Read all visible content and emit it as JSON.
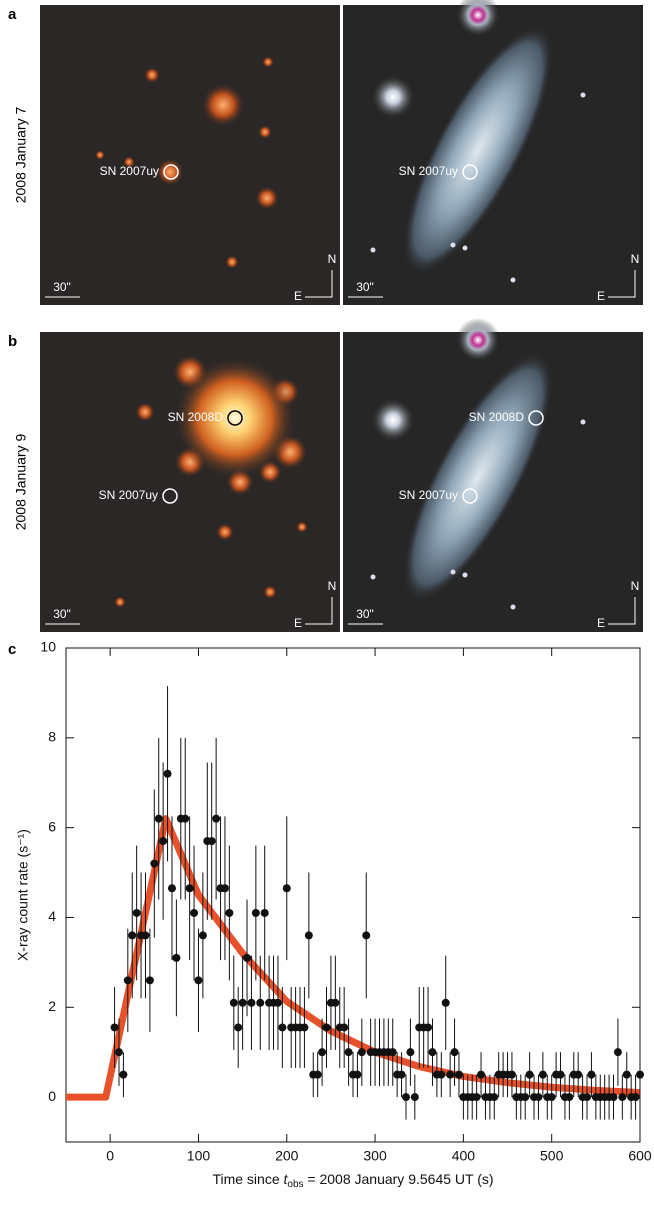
{
  "image_panels": [
    {
      "label": "a",
      "date": "2008 January 7",
      "images": [
        {
          "annotations": [
            "SN 2007uy"
          ],
          "scale": "30\"",
          "north": "N",
          "east": "E"
        },
        {
          "annotations": [
            "SN 2007uy"
          ],
          "scale": "30\"",
          "north": "N",
          "east": "E"
        }
      ]
    },
    {
      "label": "b",
      "date": "2008 January 9",
      "images": [
        {
          "annotations": [
            "SN 2008D",
            "SN 2007uy"
          ],
          "scale": "30\"",
          "north": "N",
          "east": "E"
        },
        {
          "annotations": [
            "SN 2008D",
            "SN 2007uy"
          ],
          "scale": "30\"",
          "north": "N",
          "east": "E"
        }
      ]
    }
  ],
  "chart_data": {
    "type": "scatter",
    "label": "c",
    "xlabel": {
      "prefix": "Time since ",
      "var": "t",
      "sub": "obs",
      "suffix": " = 2008 January 9.5645 UT (s)"
    },
    "ylabel": "X-ray count rate (s⁻¹)",
    "xlim": [
      -50,
      600
    ],
    "ylim": [
      -1,
      10
    ],
    "xticks": [
      0,
      100,
      200,
      300,
      400,
      500,
      600
    ],
    "yticks": [
      0,
      2,
      4,
      6,
      8,
      10
    ],
    "points": {
      "color": "#111111",
      "x": [
        5,
        10,
        15,
        20,
        25,
        30,
        35,
        40,
        45,
        50,
        55,
        60,
        65,
        70,
        75,
        80,
        85,
        90,
        95,
        100,
        105,
        110,
        115,
        120,
        125,
        130,
        135,
        140,
        145,
        150,
        155,
        160,
        165,
        170,
        175,
        180,
        185,
        190,
        195,
        200,
        205,
        210,
        215,
        220,
        225,
        230,
        235,
        240,
        245,
        250,
        255,
        260,
        265,
        270,
        275,
        280,
        285,
        290,
        295,
        300,
        305,
        310,
        315,
        320,
        325,
        330,
        335,
        340,
        345,
        350,
        355,
        360,
        365,
        370,
        375,
        380,
        385,
        390,
        395,
        400,
        405,
        410,
        415,
        420,
        425,
        430,
        435,
        440,
        445,
        450,
        455,
        460,
        465,
        470,
        475,
        480,
        485,
        490,
        495,
        500,
        505,
        510,
        515,
        520,
        525,
        530,
        535,
        540,
        545,
        550,
        555,
        560,
        565,
        570,
        575,
        580,
        585,
        590,
        595,
        600
      ],
      "values": [
        1.55,
        1.0,
        0.5,
        2.6,
        3.6,
        4.1,
        3.6,
        3.6,
        2.6,
        5.2,
        6.2,
        5.7,
        7.2,
        4.65,
        3.1,
        6.2,
        6.2,
        4.65,
        4.1,
        2.6,
        3.6,
        5.7,
        5.7,
        6.2,
        4.65,
        4.65,
        4.1,
        2.1,
        1.55,
        2.1,
        3.1,
        2.1,
        4.1,
        2.1,
        4.1,
        2.1,
        2.1,
        2.1,
        1.55,
        4.65,
        1.55,
        1.55,
        1.55,
        1.55,
        3.6,
        0.5,
        0.5,
        1.0,
        1.55,
        2.1,
        2.1,
        1.55,
        1.55,
        1.0,
        0.5,
        0.5,
        1.0,
        3.6,
        1.0,
        1.0,
        1.0,
        1.0,
        1.0,
        1.0,
        0.5,
        0.5,
        0,
        1.0,
        0,
        1.55,
        1.55,
        1.55,
        1.0,
        0.5,
        0.5,
        2.1,
        0.5,
        1.0,
        0.5,
        0,
        0,
        0,
        0,
        0.5,
        0,
        0,
        0,
        0.5,
        0.5,
        0.5,
        0.5,
        0,
        0,
        0,
        0.5,
        0,
        0,
        0.5,
        0,
        0,
        0.5,
        0.5,
        0,
        0,
        0.5,
        0.5,
        0,
        0,
        0.5,
        0,
        0,
        0,
        0,
        0,
        1.0,
        0,
        0.5,
        0,
        0,
        0.5
      ],
      "errors": [
        0.9,
        0.75,
        0.5,
        1.15,
        1.4,
        1.5,
        1.4,
        1.4,
        1.15,
        1.65,
        1.8,
        1.75,
        1.95,
        1.6,
        1.3,
        1.8,
        1.8,
        1.6,
        1.5,
        1.15,
        1.4,
        1.75,
        1.75,
        1.8,
        1.6,
        1.6,
        1.5,
        1.05,
        0.9,
        1.05,
        1.3,
        1.05,
        1.5,
        1.05,
        1.5,
        1.05,
        1.05,
        1.05,
        0.9,
        1.6,
        0.9,
        0.9,
        0.9,
        0.9,
        1.4,
        0.5,
        0.5,
        0.75,
        0.9,
        1.05,
        1.05,
        0.9,
        0.9,
        0.75,
        0.5,
        0.5,
        0.75,
        1.4,
        0.75,
        0.75,
        0.75,
        0.75,
        0.75,
        0.75,
        0.5,
        0.5,
        0.5,
        0.75,
        0.5,
        0.9,
        0.9,
        0.9,
        0.75,
        0.5,
        0.5,
        1.05,
        0.5,
        0.75,
        0.5,
        0.5,
        0.5,
        0.5,
        0.5,
        0.5,
        0.5,
        0.5,
        0.5,
        0.5,
        0.5,
        0.5,
        0.5,
        0.5,
        0.5,
        0.5,
        0.5,
        0.5,
        0.5,
        0.5,
        0.5,
        0.5,
        0.5,
        0.5,
        0.5,
        0.5,
        0.5,
        0.5,
        0.5,
        0.5,
        0.5,
        0.5,
        0.5,
        0.5,
        0.5,
        0.5,
        0.75,
        0.5,
        0.5,
        0.5,
        0.5,
        0.5
      ]
    },
    "fit": {
      "color": "#e8522a",
      "x": [
        -50,
        -5,
        63,
        100,
        150,
        200,
        250,
        300,
        350,
        400,
        450,
        500,
        550,
        600
      ],
      "values": [
        0,
        0,
        6.2,
        4.5,
        3.2,
        2.13,
        1.47,
        1.0,
        0.68,
        0.46,
        0.32,
        0.22,
        0.15,
        0.1
      ]
    }
  }
}
